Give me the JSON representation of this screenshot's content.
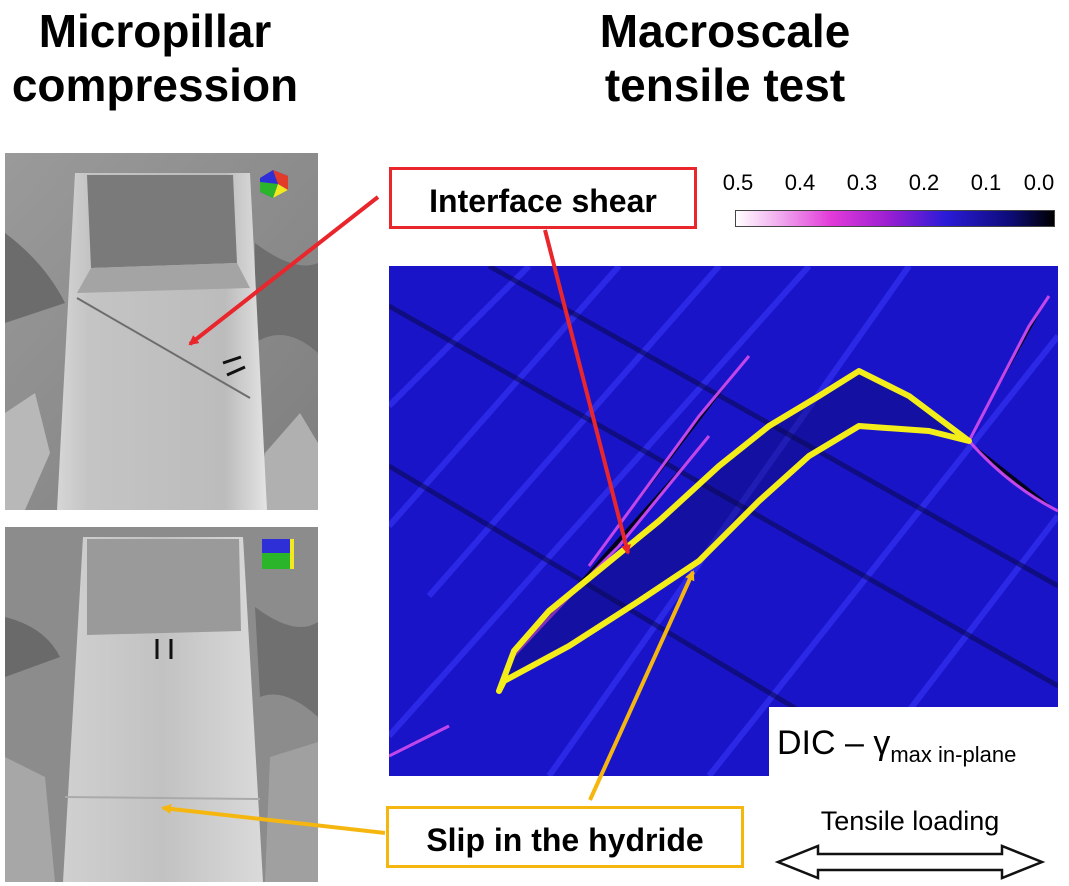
{
  "headings": {
    "left": [
      "Micropillar",
      "compression"
    ],
    "right": [
      "Macroscale",
      "tensile test"
    ]
  },
  "callouts": {
    "interface_shear": "Interface shear",
    "slip_in_hydride": "Slip in the hydride"
  },
  "colorbar": {
    "ticks": [
      "0.5",
      "0.4",
      "0.3",
      "0.2",
      "0.1",
      "0.0"
    ]
  },
  "dic_label": {
    "main": "DIC – γ",
    "subscript": "max in-plane"
  },
  "tensile_label": "Tensile loading",
  "colors": {
    "interface_arrow": "#e8262b",
    "slip_arrow": "#f5b70f",
    "hydride_outline": "#f3ee1a",
    "map_background": "#1a14c9"
  }
}
